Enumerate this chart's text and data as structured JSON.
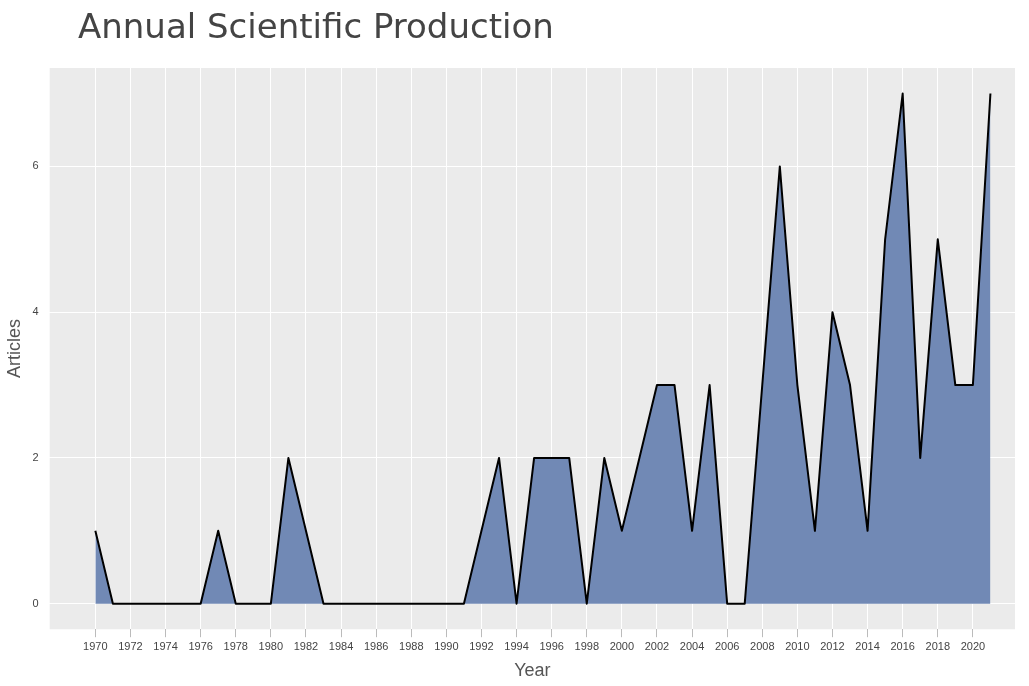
{
  "chart_data": {
    "type": "area",
    "title": "Annual Scientific Production",
    "xlabel": "Year",
    "ylabel": "Articles",
    "x": [
      1970,
      1971,
      1972,
      1973,
      1974,
      1975,
      1976,
      1977,
      1978,
      1979,
      1980,
      1981,
      1982,
      1983,
      1984,
      1985,
      1986,
      1987,
      1988,
      1989,
      1990,
      1991,
      1992,
      1993,
      1994,
      1995,
      1996,
      1997,
      1998,
      1999,
      2000,
      2001,
      2002,
      2003,
      2004,
      2005,
      2006,
      2007,
      2008,
      2009,
      2010,
      2011,
      2012,
      2013,
      2014,
      2015,
      2016,
      2017,
      2018,
      2019,
      2020,
      2021
    ],
    "series": [
      {
        "color": "#7189b5",
        "values": [
          1,
          0,
          0,
          0,
          0,
          0,
          0,
          1,
          0,
          0,
          0,
          2,
          1,
          0,
          0,
          0,
          0,
          0,
          0,
          0,
          0,
          0,
          1,
          2,
          0,
          2,
          2,
          2,
          0,
          2,
          1,
          2,
          3,
          3,
          1,
          3,
          0,
          0,
          3,
          6,
          3,
          1,
          4,
          3,
          1,
          5,
          7,
          2,
          5,
          3,
          3,
          7
        ]
      }
    ],
    "xlim": [
      1967.4,
      2022.4
    ],
    "xticks": [
      1970,
      1972,
      1974,
      1976,
      1978,
      1980,
      1982,
      1984,
      1986,
      1988,
      1990,
      1992,
      1994,
      1996,
      1998,
      2000,
      2002,
      2004,
      2006,
      2008,
      2010,
      2012,
      2014,
      2016,
      2018,
      2020
    ],
    "ylim": [
      -0.35,
      7.35
    ],
    "yticks": [
      0,
      2,
      4,
      6
    ],
    "grid": true,
    "legend": false
  }
}
